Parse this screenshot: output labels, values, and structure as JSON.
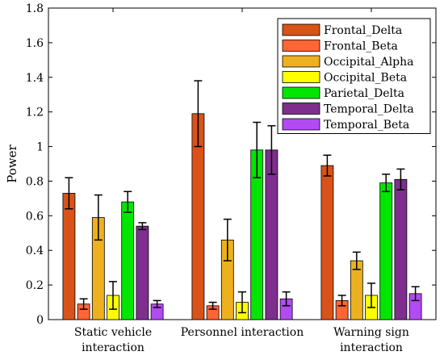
{
  "chart_data": {
    "type": "bar",
    "title": "",
    "xlabel": "",
    "ylabel": "Power",
    "ylim": [
      0,
      1.8
    ],
    "yticks": [
      "0",
      "0.2",
      "0.4",
      "0.6",
      "0.8",
      "1",
      "1.2",
      "1.4",
      "1.6",
      "1.8"
    ],
    "grid": false,
    "legend_position": "top-right",
    "categories": [
      [
        "Static vehicle",
        "interaction"
      ],
      [
        "Personnel interaction"
      ],
      [
        "Warning sign",
        "interaction"
      ]
    ],
    "series": [
      {
        "name": "Frontal_Delta",
        "color": "#D95319",
        "values": [
          0.73,
          1.19,
          0.89
        ],
        "errors": [
          0.09,
          0.19,
          0.06
        ]
      },
      {
        "name": "Frontal_Beta",
        "color": "#FF6633",
        "values": [
          0.09,
          0.08,
          0.11
        ],
        "errors": [
          0.03,
          0.02,
          0.03
        ]
      },
      {
        "name": "Occipital_Alpha",
        "color": "#EDB120",
        "values": [
          0.59,
          0.46,
          0.34
        ],
        "errors": [
          0.13,
          0.12,
          0.05
        ]
      },
      {
        "name": "Occipital_Beta",
        "color": "#FFFF00",
        "values": [
          0.14,
          0.1,
          0.14
        ],
        "errors": [
          0.08,
          0.06,
          0.07
        ]
      },
      {
        "name": "Parietal_Delta",
        "color": "#00E600",
        "values": [
          0.68,
          0.98,
          0.79
        ],
        "errors": [
          0.06,
          0.16,
          0.05
        ]
      },
      {
        "name": "Temporal_Delta",
        "color": "#7E2F8E",
        "values": [
          0.54,
          0.98,
          0.81
        ],
        "errors": [
          0.02,
          0.14,
          0.06
        ]
      },
      {
        "name": "Temporal_Beta",
        "color": "#B24BF3",
        "values": [
          0.09,
          0.12,
          0.15
        ],
        "errors": [
          0.02,
          0.04,
          0.04
        ]
      }
    ]
  }
}
